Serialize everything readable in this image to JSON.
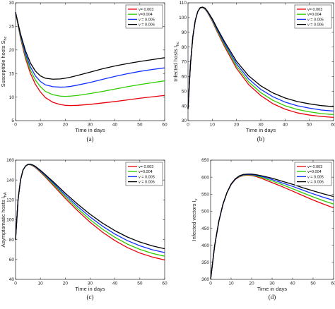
{
  "chart_data": [
    {
      "type": "line",
      "caption": "(a)",
      "xlabel": "Time in days",
      "ylabel": "Susceptible hosts S",
      "ylabel_sub": "hc",
      "xlim": [
        0,
        60
      ],
      "ylim": [
        5,
        30
      ],
      "xticks": [
        "0",
        "10",
        "20",
        "30",
        "40",
        "50",
        "60"
      ],
      "yticks": [
        "5",
        "10",
        "15",
        "20",
        "25",
        "30"
      ],
      "legend_position": "top-right",
      "x": [
        0,
        2,
        4,
        6,
        8,
        10,
        12,
        15,
        18,
        20,
        22,
        25,
        30,
        35,
        40,
        45,
        50,
        55,
        60
      ],
      "series": [
        {
          "name": "v= 0.003",
          "color": "#e8000b",
          "values": [
            28,
            22.5,
            18.2,
            15.0,
            12.7,
            11.1,
            9.9,
            8.9,
            8.4,
            8.25,
            8.2,
            8.25,
            8.45,
            8.75,
            9.05,
            9.4,
            9.75,
            10.05,
            10.35
          ]
        },
        {
          "name": "v=0.004",
          "color": "#2ecc00",
          "values": [
            28,
            22.8,
            18.7,
            15.7,
            13.6,
            12.2,
            11.2,
            10.5,
            10.2,
            10.15,
            10.2,
            10.35,
            10.75,
            11.2,
            11.7,
            12.2,
            12.65,
            13.05,
            13.45
          ]
        },
        {
          "name": "v = 0.005",
          "color": "#1030ff",
          "values": [
            28,
            23.1,
            19.2,
            16.4,
            14.5,
            13.3,
            12.6,
            12.2,
            12.1,
            12.15,
            12.25,
            12.55,
            13.1,
            13.75,
            14.4,
            14.95,
            15.45,
            15.85,
            16.2
          ]
        },
        {
          "name": "v = 0.006",
          "color": "#000000",
          "values": [
            28,
            23.4,
            19.8,
            17.2,
            15.5,
            14.5,
            14.0,
            13.8,
            13.85,
            14.0,
            14.2,
            14.6,
            15.3,
            16.0,
            16.6,
            17.1,
            17.55,
            17.95,
            18.35
          ]
        }
      ]
    },
    {
      "type": "line",
      "caption": "(b)",
      "xlabel": "Time in days",
      "ylabel": "Infected hosts I",
      "ylabel_sub": "hc",
      "xlim": [
        0,
        60
      ],
      "ylim": [
        30,
        110
      ],
      "xticks": [
        "0",
        "10",
        "20",
        "30",
        "40",
        "50",
        "60"
      ],
      "yticks": [
        "30",
        "40",
        "50",
        "60",
        "70",
        "80",
        "90",
        "100",
        "110"
      ],
      "legend_position": "top-right",
      "x": [
        0,
        1,
        2,
        3,
        4,
        5,
        6,
        7,
        8,
        10,
        12,
        15,
        20,
        25,
        30,
        35,
        40,
        45,
        50,
        55,
        60
      ],
      "series": [
        {
          "name": "v= 0.003",
          "color": "#e8000b",
          "values": [
            38,
            68,
            87,
            98,
            104,
            106.5,
            106.8,
            105.8,
            103.5,
            97.5,
            90.5,
            80.5,
            65.5,
            54.5,
            47.0,
            41.5,
            37.8,
            35.3,
            33.8,
            32.8,
            32.2
          ]
        },
        {
          "name": "v=0.004",
          "color": "#2ecc00",
          "values": [
            38,
            68,
            87,
            98,
            104,
            106.5,
            106.9,
            106.0,
            103.8,
            98.0,
            91.2,
            81.5,
            67.0,
            56.3,
            49.0,
            43.8,
            40.1,
            37.6,
            36.0,
            34.8,
            34.1
          ]
        },
        {
          "name": "v = 0.005",
          "color": "#1030ff",
          "values": [
            38,
            68,
            87,
            98,
            104,
            106.6,
            107.0,
            106.2,
            104.1,
            98.6,
            92.0,
            82.6,
            68.6,
            58.3,
            51.2,
            46.2,
            42.6,
            40.1,
            38.5,
            37.2,
            36.5
          ]
        },
        {
          "name": "v = 0.006",
          "color": "#000000",
          "values": [
            38,
            68,
            87,
            98,
            104,
            106.7,
            107.1,
            106.4,
            104.4,
            99.2,
            92.8,
            83.8,
            70.3,
            60.4,
            53.6,
            48.8,
            45.4,
            43.0,
            41.4,
            40.2,
            39.5
          ]
        }
      ]
    },
    {
      "type": "line",
      "caption": "(c)",
      "xlabel": "Time in days",
      "ylabel": "Asymptomatic hosts I",
      "ylabel_sub": "hA",
      "xlim": [
        0,
        60
      ],
      "ylim": [
        40,
        160
      ],
      "xticks": [
        "0",
        "10",
        "20",
        "30",
        "40",
        "50",
        "60"
      ],
      "yticks": [
        "40",
        "60",
        "80",
        "100",
        "120",
        "140",
        "160"
      ],
      "legend_position": "top-right",
      "x": [
        0,
        1,
        2,
        3,
        4,
        5,
        6,
        7,
        8,
        10,
        12,
        15,
        20,
        25,
        30,
        35,
        40,
        45,
        50,
        55,
        60
      ],
      "series": [
        {
          "name": "v= 0.003",
          "color": "#e8000b",
          "values": [
            80,
            120,
            140,
            150,
            154,
            155.5,
            155.3,
            154.2,
            152.5,
            148.0,
            143.0,
            135.0,
            121.5,
            109.0,
            97.5,
            87.5,
            79.0,
            72.0,
            66.5,
            62.5,
            59.5
          ]
        },
        {
          "name": "v=0.004",
          "color": "#2ecc00",
          "values": [
            80,
            120,
            140,
            150,
            154,
            155.6,
            155.5,
            154.5,
            152.9,
            148.6,
            143.8,
            136.2,
            123.2,
            111.2,
            100.1,
            90.5,
            82.3,
            75.5,
            70.2,
            66.2,
            63.3
          ]
        },
        {
          "name": "v = 0.005",
          "color": "#1030ff",
          "values": [
            80,
            120,
            140,
            150,
            154,
            155.7,
            155.7,
            154.8,
            153.3,
            149.2,
            144.6,
            137.4,
            124.9,
            113.4,
            102.8,
            93.5,
            85.6,
            79.0,
            73.8,
            69.8,
            67.0
          ]
        },
        {
          "name": "v = 0.006",
          "color": "#000000",
          "values": [
            80,
            120,
            140,
            150,
            154,
            155.8,
            155.9,
            155.1,
            153.7,
            149.8,
            145.4,
            138.6,
            126.7,
            115.7,
            105.5,
            96.6,
            89.0,
            82.6,
            77.6,
            73.7,
            70.8
          ]
        }
      ]
    },
    {
      "type": "line",
      "caption": "(d)",
      "xlabel": "Time in days",
      "ylabel": "Infected vectors I",
      "ylabel_sub": "v",
      "xlim": [
        0,
        60
      ],
      "ylim": [
        300,
        650
      ],
      "xticks": [
        "0",
        "10",
        "20",
        "30",
        "40",
        "50",
        "60"
      ],
      "yticks": [
        "300",
        "350",
        "400",
        "450",
        "500",
        "550",
        "600",
        "650"
      ],
      "legend_position": "top-right",
      "x": [
        0,
        2,
        4,
        6,
        8,
        10,
        12,
        14,
        16,
        18,
        20,
        22,
        25,
        30,
        35,
        40,
        45,
        50,
        55,
        60
      ],
      "series": [
        {
          "name": "v= 0.003",
          "color": "#e8000b",
          "values": [
            300,
            400,
            470,
            520,
            555,
            578,
            593,
            601,
            605,
            606,
            605,
            602,
            596,
            584,
            572,
            559,
            546,
            533,
            521,
            510
          ]
        },
        {
          "name": "v=0.004",
          "color": "#2ecc00",
          "values": [
            300,
            400,
            470,
            520,
            555,
            579,
            594,
            602,
            606,
            607,
            606.5,
            604,
            599,
            589,
            578,
            566,
            554,
            542,
            531,
            521
          ]
        },
        {
          "name": "v = 0.005",
          "color": "#1030ff",
          "values": [
            300,
            400,
            470,
            520,
            555,
            579,
            594,
            603,
            607,
            608,
            607.5,
            606,
            602,
            593,
            583,
            573,
            562,
            551,
            541,
            532
          ]
        },
        {
          "name": "v = 0.006",
          "color": "#000000",
          "values": [
            300,
            400,
            470,
            520,
            555,
            580,
            595,
            604,
            608,
            609,
            609,
            607.5,
            604,
            597,
            588,
            579,
            569,
            560,
            551,
            543
          ]
        }
      ]
    }
  ]
}
